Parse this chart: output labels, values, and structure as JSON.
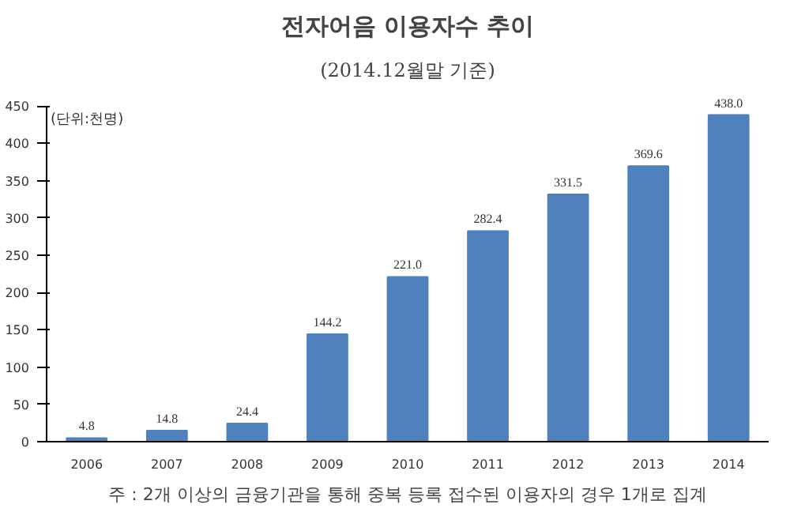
{
  "chart_data": {
    "type": "bar",
    "title": "전자어음 이용자수 추이",
    "subtitle": "(2014.12월말 기준)",
    "ylabel": "(단위:천명)",
    "categories": [
      "2006",
      "2007",
      "2008",
      "2009",
      "2010",
      "2011",
      "2012",
      "2013",
      "2014"
    ],
    "values": [
      4.8,
      14.8,
      24.4,
      144.2,
      221.0,
      282.4,
      331.5,
      369.6,
      438.0
    ],
    "value_labels": [
      "4.8",
      "14.8",
      "24.4",
      "144.2",
      "221.0",
      "282.4",
      "331.5",
      "369.6",
      "438.0"
    ],
    "color": "#4f81bd",
    "ylim": [
      0,
      450
    ],
    "yticks": [
      0,
      50,
      100,
      150,
      200,
      250,
      300,
      350,
      400,
      450
    ],
    "grid": false,
    "annotations": [
      "주 : 2개 이상의 금융기관을 통해 중복 등록 접수된 이용자의 경우 1개로 집계"
    ]
  }
}
